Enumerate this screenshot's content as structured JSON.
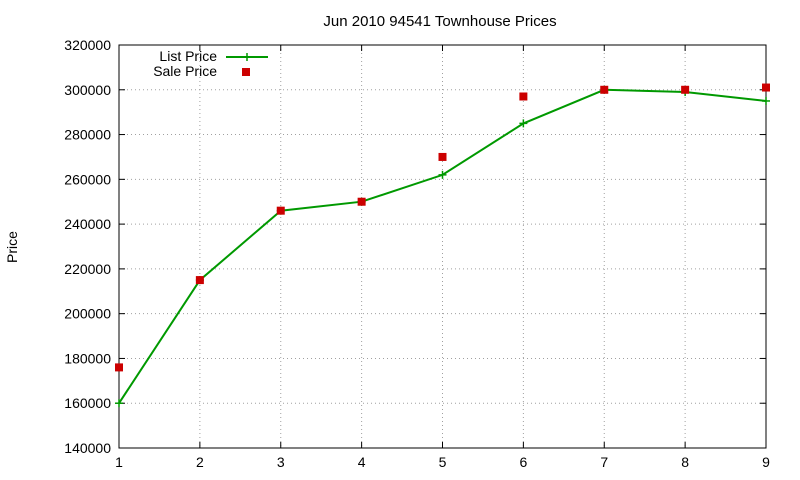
{
  "chart_data": {
    "type": "line",
    "title": "Jun 2010 94541 Townhouse Prices",
    "xlabel": "",
    "ylabel": "Price",
    "x": [
      1,
      2,
      3,
      4,
      5,
      6,
      7,
      8,
      9
    ],
    "xlim": [
      1,
      9
    ],
    "ylim": [
      140000,
      320000
    ],
    "yticks": [
      140000,
      160000,
      180000,
      200000,
      220000,
      240000,
      260000,
      280000,
      300000,
      320000
    ],
    "xticks": [
      1,
      2,
      3,
      4,
      5,
      6,
      7,
      8,
      9
    ],
    "grid": true,
    "legend_position": "top-left",
    "series": [
      {
        "name": "List Price",
        "style": "line-with-plus-markers",
        "color": "#009900",
        "values": [
          160000,
          215000,
          246000,
          250000,
          262000,
          285000,
          300000,
          299000,
          295000
        ]
      },
      {
        "name": "Sale Price",
        "style": "square-markers",
        "color": "#cc0000",
        "values": [
          176000,
          215000,
          246000,
          250000,
          270000,
          297000,
          300000,
          300000,
          301000
        ]
      }
    ]
  }
}
